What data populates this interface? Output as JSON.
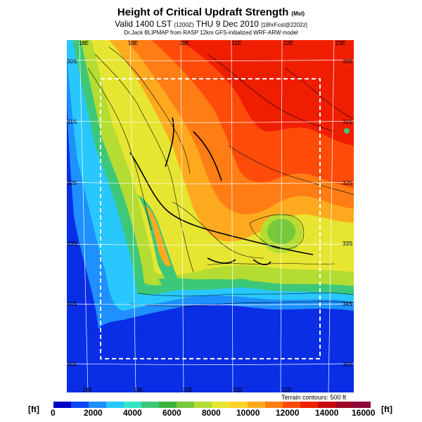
{
  "title": {
    "main": "Height of Critical Updraft Strength",
    "main_unit": "(Msl)",
    "valid_prefix": "Valid 1400 LST",
    "valid_code": "(1200Z)",
    "valid_date": "THU 9 Dec 2010",
    "valid_suffix": "[18hrFcst@2202z]",
    "credit": "Dr.Jack BLIPMAP from RASP 12km GFS-initialized WRF-ARW model"
  },
  "map": {
    "lon_top": [
      "18E",
      "19E",
      "20E",
      "21E",
      "22E",
      "23E"
    ],
    "lon_bottom": [
      "18E",
      "19E",
      "20E",
      "21E",
      "22E"
    ],
    "lat_right": [
      "30S",
      "31S",
      "32S",
      "33S",
      "34S",
      "35S"
    ],
    "lat_left": [
      "30S",
      "31S",
      "32S",
      "33S",
      "34S",
      "35S"
    ],
    "terrain_note": "Terrain contours: 500 ft"
  },
  "colorbar": {
    "unit_left": "[ft]",
    "unit_right": "[ft]",
    "ticks": [
      "0",
      "2000",
      "4000",
      "6000",
      "8000",
      "10000",
      "12000",
      "14000",
      "16000"
    ],
    "colors": [
      "#0000c8",
      "#0a48ff",
      "#1e90ff",
      "#28c8ff",
      "#32e6c8",
      "#3cc878",
      "#3cb43c",
      "#78c83c",
      "#b4dc32",
      "#e6e632",
      "#ffd228",
      "#ffaa1e",
      "#ff7d14",
      "#ff4b0a",
      "#f01e00",
      "#c80a0a",
      "#a00028",
      "#8c0a3c"
    ]
  }
}
